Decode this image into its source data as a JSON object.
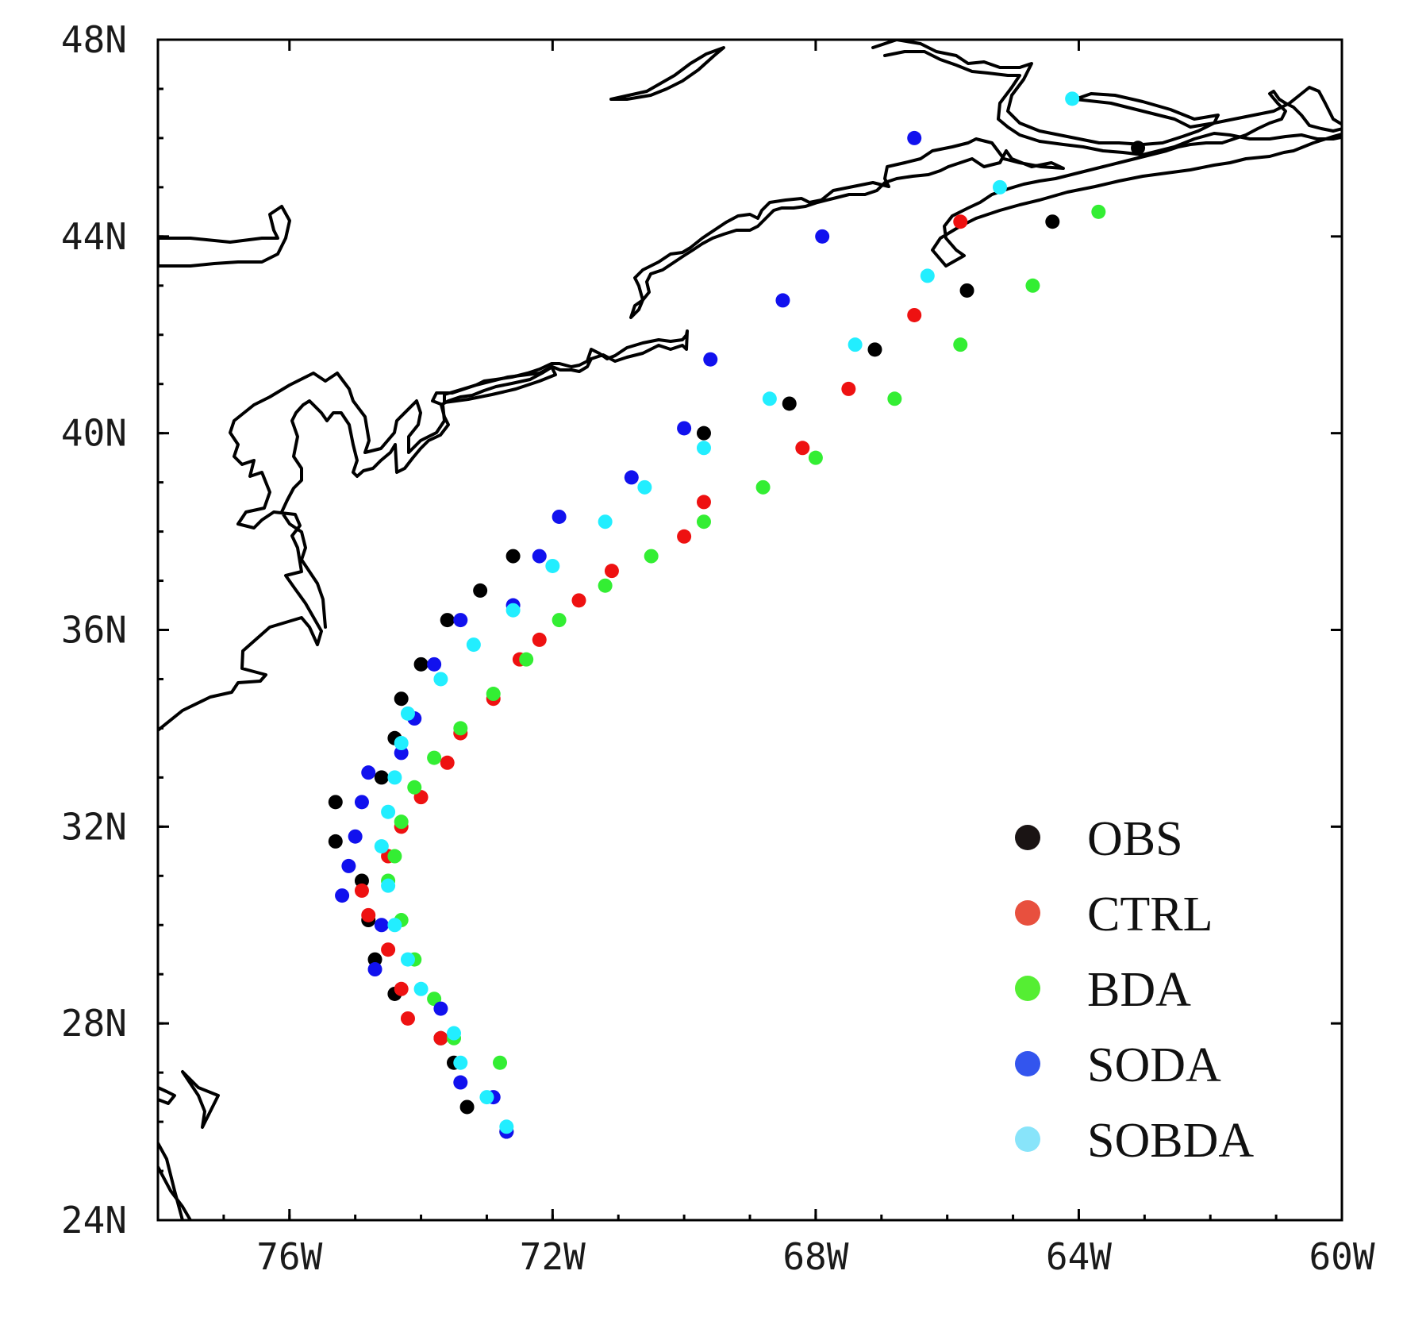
{
  "map": {
    "x_ticks": [
      "76W",
      "72W",
      "68W",
      "64W",
      "60W"
    ],
    "y_ticks": [
      "48N",
      "44N",
      "40N",
      "36N",
      "32N",
      "28N",
      "24N"
    ],
    "x_range": [
      -78,
      -60
    ],
    "y_range": [
      24,
      48
    ]
  },
  "legend": {
    "items": [
      {
        "label": "OBS",
        "color": "#1a1414"
      },
      {
        "label": "CTRL",
        "color": "#e8503e"
      },
      {
        "label": "BDA",
        "color": "#55ee33"
      },
      {
        "label": "SODA",
        "color": "#3355ee"
      },
      {
        "label": "SOBDA",
        "color": "#88e4fa"
      }
    ]
  },
  "tracks": [
    {
      "name": "OBS",
      "color": "#000000",
      "points": [
        [
          -72.7,
          25.8
        ],
        [
          -73.3,
          26.3
        ],
        [
          -73.5,
          27.2
        ],
        [
          -73.7,
          27.7
        ],
        [
          -74.4,
          28.6
        ],
        [
          -74.7,
          29.3
        ],
        [
          -74.8,
          30.1
        ],
        [
          -74.9,
          30.9
        ],
        [
          -75.3,
          31.7
        ],
        [
          -75.3,
          32.5
        ],
        [
          -74.6,
          33.0
        ],
        [
          -74.4,
          33.8
        ],
        [
          -74.3,
          34.6
        ],
        [
          -74.0,
          35.3
        ],
        [
          -73.6,
          36.2
        ],
        [
          -73.1,
          36.8
        ],
        [
          -72.6,
          37.5
        ],
        [
          -69.7,
          40.0
        ],
        [
          -68.4,
          40.6
        ],
        [
          -67.1,
          41.7
        ],
        [
          -65.7,
          42.9
        ],
        [
          -64.4,
          44.3
        ],
        [
          -63.1,
          45.8
        ]
      ]
    },
    {
      "name": "CTRL",
      "color": "#ee1111",
      "points": [
        [
          -73.7,
          27.7
        ],
        [
          -74.2,
          28.1
        ],
        [
          -74.3,
          28.7
        ],
        [
          -74.5,
          29.5
        ],
        [
          -74.8,
          30.2
        ],
        [
          -74.9,
          30.7
        ],
        [
          -74.5,
          31.4
        ],
        [
          -74.3,
          32.0
        ],
        [
          -74.0,
          32.6
        ],
        [
          -73.6,
          33.3
        ],
        [
          -73.4,
          33.9
        ],
        [
          -72.9,
          34.6
        ],
        [
          -72.5,
          35.4
        ],
        [
          -72.2,
          35.8
        ],
        [
          -71.6,
          36.6
        ],
        [
          -71.1,
          37.2
        ],
        [
          -70.0,
          37.9
        ],
        [
          -69.7,
          38.6
        ],
        [
          -68.2,
          39.7
        ],
        [
          -67.5,
          40.9
        ],
        [
          -66.5,
          42.4
        ],
        [
          -65.8,
          44.3
        ]
      ]
    },
    {
      "name": "BDA",
      "color": "#33ee33",
      "points": [
        [
          -72.8,
          27.2
        ],
        [
          -73.5,
          27.7
        ],
        [
          -73.8,
          28.5
        ],
        [
          -74.1,
          29.3
        ],
        [
          -74.3,
          30.1
        ],
        [
          -74.5,
          30.9
        ],
        [
          -74.4,
          31.4
        ],
        [
          -74.3,
          32.1
        ],
        [
          -74.1,
          32.8
        ],
        [
          -73.8,
          33.4
        ],
        [
          -73.4,
          34.0
        ],
        [
          -72.9,
          34.7
        ],
        [
          -72.4,
          35.4
        ],
        [
          -71.9,
          36.2
        ],
        [
          -71.2,
          36.9
        ],
        [
          -70.5,
          37.5
        ],
        [
          -69.7,
          38.2
        ],
        [
          -68.8,
          38.9
        ],
        [
          -68.0,
          39.5
        ],
        [
          -66.8,
          40.7
        ],
        [
          -65.8,
          41.8
        ],
        [
          -64.7,
          43.0
        ],
        [
          -63.7,
          44.5
        ]
      ]
    },
    {
      "name": "SODA",
      "color": "#1111ee",
      "points": [
        [
          -72.7,
          25.8
        ],
        [
          -72.9,
          26.5
        ],
        [
          -73.4,
          26.8
        ],
        [
          -73.7,
          28.3
        ],
        [
          -74.7,
          29.1
        ],
        [
          -74.6,
          30.0
        ],
        [
          -75.2,
          30.6
        ],
        [
          -75.1,
          31.2
        ],
        [
          -75.0,
          31.8
        ],
        [
          -74.9,
          32.5
        ],
        [
          -74.8,
          33.1
        ],
        [
          -74.3,
          33.5
        ],
        [
          -74.1,
          34.2
        ],
        [
          -73.8,
          35.3
        ],
        [
          -73.4,
          36.2
        ],
        [
          -72.6,
          36.5
        ],
        [
          -72.2,
          37.5
        ],
        [
          -71.9,
          38.3
        ],
        [
          -70.8,
          39.1
        ],
        [
          -70.0,
          40.1
        ],
        [
          -69.6,
          41.5
        ],
        [
          -68.5,
          42.7
        ],
        [
          -67.9,
          44.0
        ],
        [
          -66.5,
          46.0
        ]
      ]
    },
    {
      "name": "SOBDA",
      "color": "#22eeff",
      "points": [
        [
          -72.7,
          25.9
        ],
        [
          -73.0,
          26.5
        ],
        [
          -73.4,
          27.2
        ],
        [
          -73.5,
          27.8
        ],
        [
          -74.0,
          28.7
        ],
        [
          -74.2,
          29.3
        ],
        [
          -74.4,
          30.0
        ],
        [
          -74.5,
          30.8
        ],
        [
          -74.6,
          31.6
        ],
        [
          -74.5,
          32.3
        ],
        [
          -74.4,
          33.0
        ],
        [
          -74.3,
          33.7
        ],
        [
          -74.2,
          34.3
        ],
        [
          -73.7,
          35.0
        ],
        [
          -73.2,
          35.7
        ],
        [
          -72.6,
          36.4
        ],
        [
          -72.0,
          37.3
        ],
        [
          -71.2,
          38.2
        ],
        [
          -70.6,
          38.9
        ],
        [
          -69.7,
          39.7
        ],
        [
          -68.7,
          40.7
        ],
        [
          -67.4,
          41.8
        ],
        [
          -66.3,
          43.2
        ],
        [
          -65.2,
          45.0
        ],
        [
          -64.1,
          46.8
        ]
      ]
    }
  ]
}
